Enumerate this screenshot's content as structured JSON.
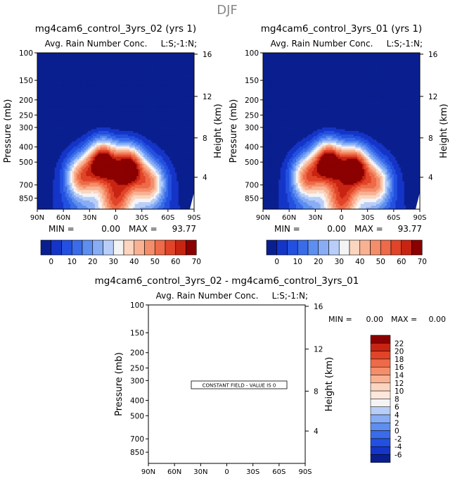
{
  "page_title": "DJF",
  "chart_data": [
    {
      "type": "heatmap",
      "title": "mg4cam6_control_3yrs_02 (yrs 1)",
      "subtitle": "Avg. Rain Number Conc.",
      "corner_label": "L:S;-1:N;",
      "xlabel": "",
      "ylabel": "Pressure (mb)",
      "ylabel_right": "Height (km)",
      "x_ticks": [
        "90N",
        "60N",
        "30N",
        "0",
        "30S",
        "60S",
        "90S"
      ],
      "y_ticks": [
        "100",
        "150",
        "200",
        "250",
        "300",
        "400",
        "500",
        "700",
        "850"
      ],
      "y_ticks_right": [
        "16",
        "12",
        "8",
        "4"
      ],
      "stats_min_label": "MIN =",
      "stats_min": "0.00",
      "stats_max_label": "MAX =",
      "stats_max": "93.77",
      "blobs": [
        {
          "lat": 15,
          "p": 500,
          "peak": 70
        },
        {
          "lat": -15,
          "p": 540,
          "peak": 65
        },
        {
          "lat": 40,
          "p": 620,
          "peak": 45
        },
        {
          "lat": -40,
          "p": 680,
          "peak": 40
        },
        {
          "lat": 0,
          "p": 850,
          "peak": 35
        }
      ]
    },
    {
      "type": "heatmap",
      "title": "mg4cam6_control_3yrs_01 (yrs 1)",
      "subtitle": "Avg. Rain Number Conc.",
      "corner_label": "L:S;-1:N;",
      "xlabel": "",
      "ylabel": "Pressure (mb)",
      "ylabel_right": "Height (km)",
      "x_ticks": [
        "90N",
        "60N",
        "30N",
        "0",
        "30S",
        "60S",
        "90S"
      ],
      "y_ticks": [
        "100",
        "150",
        "200",
        "250",
        "300",
        "400",
        "500",
        "700",
        "850"
      ],
      "y_ticks_right": [
        "16",
        "12",
        "8",
        "4"
      ],
      "stats_min_label": "MIN =",
      "stats_min": "0.00",
      "stats_max_label": "MAX =",
      "stats_max": "93.77",
      "blobs": [
        {
          "lat": 15,
          "p": 500,
          "peak": 70
        },
        {
          "lat": -15,
          "p": 540,
          "peak": 65
        },
        {
          "lat": 40,
          "p": 620,
          "peak": 45
        },
        {
          "lat": -40,
          "p": 680,
          "peak": 40
        },
        {
          "lat": 0,
          "p": 850,
          "peak": 35
        }
      ]
    },
    {
      "type": "heatmap",
      "title": "mg4cam6_control_3yrs_02 - mg4cam6_control_3yrs_01",
      "subtitle": "Avg. Rain Number Conc.",
      "corner_label": "L:S;-1:N;",
      "ylabel": "Pressure (mb)",
      "ylabel_right": "Height (km)",
      "x_ticks": [
        "90N",
        "60N",
        "30N",
        "0",
        "30S",
        "60S",
        "90S"
      ],
      "y_ticks": [
        "100",
        "150",
        "200",
        "250",
        "300",
        "400",
        "500",
        "700",
        "850"
      ],
      "y_ticks_right": [
        "16",
        "12",
        "8",
        "4"
      ],
      "stats_min_label": "MIN =",
      "stats_min": "0.00",
      "stats_max_label": "MAX =",
      "stats_max": "0.00",
      "annotation": "CONSTANT FIELD - VALUE IS 0"
    }
  ],
  "colorbar_top": {
    "labels": [
      "0",
      "10",
      "20",
      "30",
      "40",
      "50",
      "60",
      "70"
    ],
    "colors": [
      "#0a1f8f",
      "#1535c8",
      "#2350e0",
      "#3a6be8",
      "#5d8ef0",
      "#88adf4",
      "#b8cef8",
      "#f4f4f4",
      "#fbd5c0",
      "#f8b293",
      "#f48e6a",
      "#ee6a48",
      "#e14428",
      "#c82412",
      "#8b0000"
    ]
  },
  "colorbar_diff": {
    "labels": [
      "22",
      "20",
      "18",
      "16",
      "14",
      "12",
      "10",
      "8",
      "6",
      "4",
      "2",
      "0",
      "-2",
      "-4",
      "-6"
    ],
    "colors": [
      "#8b0000",
      "#c82412",
      "#e14428",
      "#ee6a48",
      "#f48e6a",
      "#f8b293",
      "#fbd5c0",
      "#fde7dc",
      "#f4f4f4",
      "#b8cef8",
      "#88adf4",
      "#5d8ef0",
      "#3a6be8",
      "#2350e0",
      "#1535c8",
      "#0a1f8f"
    ]
  }
}
